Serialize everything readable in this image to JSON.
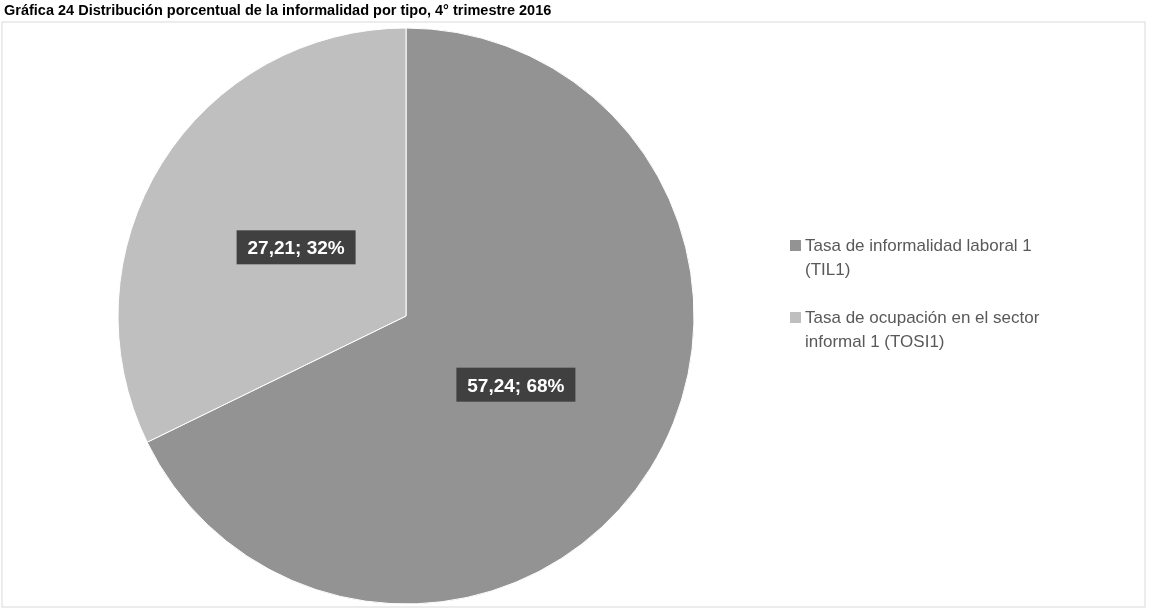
{
  "chart_data": {
    "type": "pie",
    "title": "Gráfica 24 Distribución porcentual de la informalidad por tipo, 4° trimestre 2016",
    "categories": [
      "Tasa de informalidad laboral 1 (TIL1)",
      "Tasa de ocupación en el sector informal 1 (TOSI1)"
    ],
    "values": [
      57.24,
      27.21
    ],
    "colors": [
      "#939393",
      "#bfbfbf"
    ],
    "value_labels": [
      "57,24; 68%",
      "27,21; 32%"
    ],
    "legend": "right"
  }
}
